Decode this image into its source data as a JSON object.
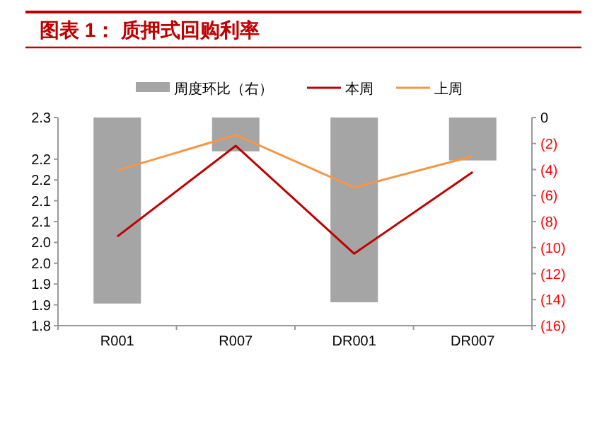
{
  "chart_data": {
    "type": "bar",
    "title": "图表 1：  质押式回购利率",
    "categories": [
      "R001",
      "R007",
      "DR001",
      "DR007"
    ],
    "series": [
      {
        "name": "周度环比（右）",
        "axis": "y2",
        "color": "#a5a5a5",
        "values": [
          -14.3,
          -2.6,
          -14.2,
          -3.3
        ]
      },
      {
        "name": "本周",
        "type": "line",
        "color": "#c00000",
        "values": [
          2.014,
          2.232,
          1.973,
          2.169
        ]
      },
      {
        "name": "上周",
        "type": "line",
        "color": "#f79646",
        "values": [
          2.173,
          2.258,
          2.132,
          2.207
        ]
      }
    ],
    "ylim": [
      1.8,
      2.3
    ],
    "yticks": [
      1.8,
      {
        "value": 1.85,
        "label": "1.9"
      },
      1.9,
      {
        "value": 1.95,
        "label": "2.0"
      },
      {
        "value": 2.0,
        "label": "2.0"
      },
      {
        "value": 2.05,
        "label": "2.1"
      },
      2.1,
      {
        "value": 2.15,
        "label": "2.2"
      },
      2.2,
      2.3
    ],
    "y2lim": [
      -16,
      0
    ],
    "y2ticks": [
      {
        "value": -16,
        "label": "(16)"
      },
      {
        "value": -14,
        "label": "(14)"
      },
      {
        "value": -12,
        "label": "(12)"
      },
      {
        "value": -10,
        "label": "(10)"
      },
      {
        "value": -8,
        "label": "(8)"
      },
      {
        "value": -6,
        "label": "(6)"
      },
      {
        "value": -4,
        "label": "(4)"
      },
      {
        "value": -2,
        "label": "(2)"
      },
      0
    ],
    "legend": "top",
    "grid": false
  }
}
